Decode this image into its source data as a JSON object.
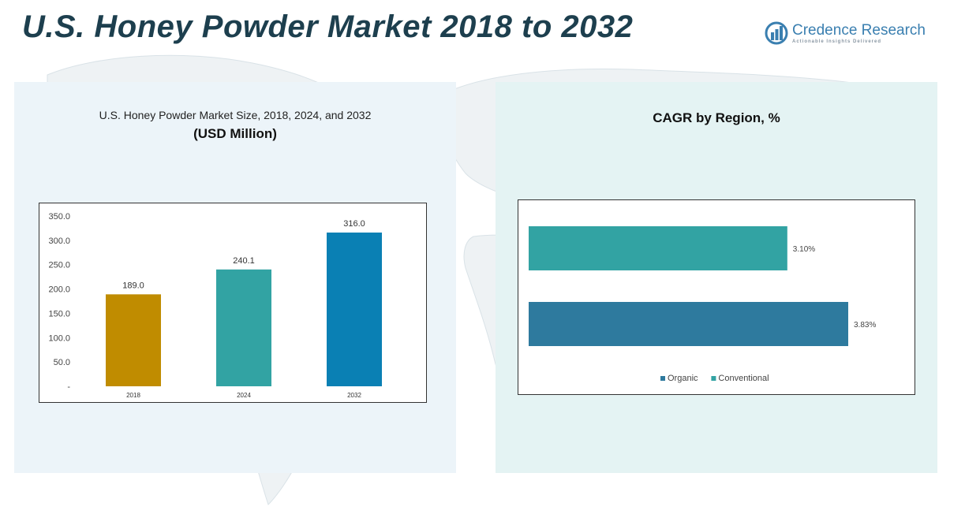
{
  "header": {
    "title": "U.S. Honey Powder Market 2018 to 2032",
    "brand_name": "Credence Research",
    "brand_tagline": "Actionable Insights Delivered"
  },
  "colors": {
    "title": "#1d3f4e",
    "brand": "#3a7fb0",
    "bar_2018": "#c08c00",
    "bar_2024": "#32a3a3",
    "bar_2032": "#0a80b4",
    "conventional": "#32a3a3",
    "organic": "#2e7a9e"
  },
  "chart_data": [
    {
      "type": "bar",
      "title": "U.S. Honey Powder Market Size, 2018, 2024, and 2032",
      "subtitle": "(USD Million)",
      "categories": [
        "2018",
        "2024",
        "2032"
      ],
      "values": [
        189.0,
        240.1,
        316.0
      ],
      "data_labels": [
        "189.0",
        "240.1",
        "316.0"
      ],
      "ylim": [
        0,
        350
      ],
      "yticks": [
        0,
        50,
        100,
        150,
        200,
        250,
        300,
        350
      ],
      "ytick_labels": [
        "-",
        "50.0",
        "100.0",
        "150.0",
        "200.0",
        "250.0",
        "300.0",
        "350.0"
      ],
      "grid": false,
      "legend": "none"
    },
    {
      "type": "bar",
      "orientation": "horizontal",
      "title": "CAGR by Region, %",
      "series": [
        {
          "name": "Conventional",
          "value": 3.1,
          "label": "3.10%"
        },
        {
          "name": "Organic",
          "value": 3.83,
          "label": "3.83%"
        }
      ],
      "legend_order": [
        "Organic",
        "Conventional"
      ],
      "legend": "bottom",
      "grid": false
    }
  ]
}
